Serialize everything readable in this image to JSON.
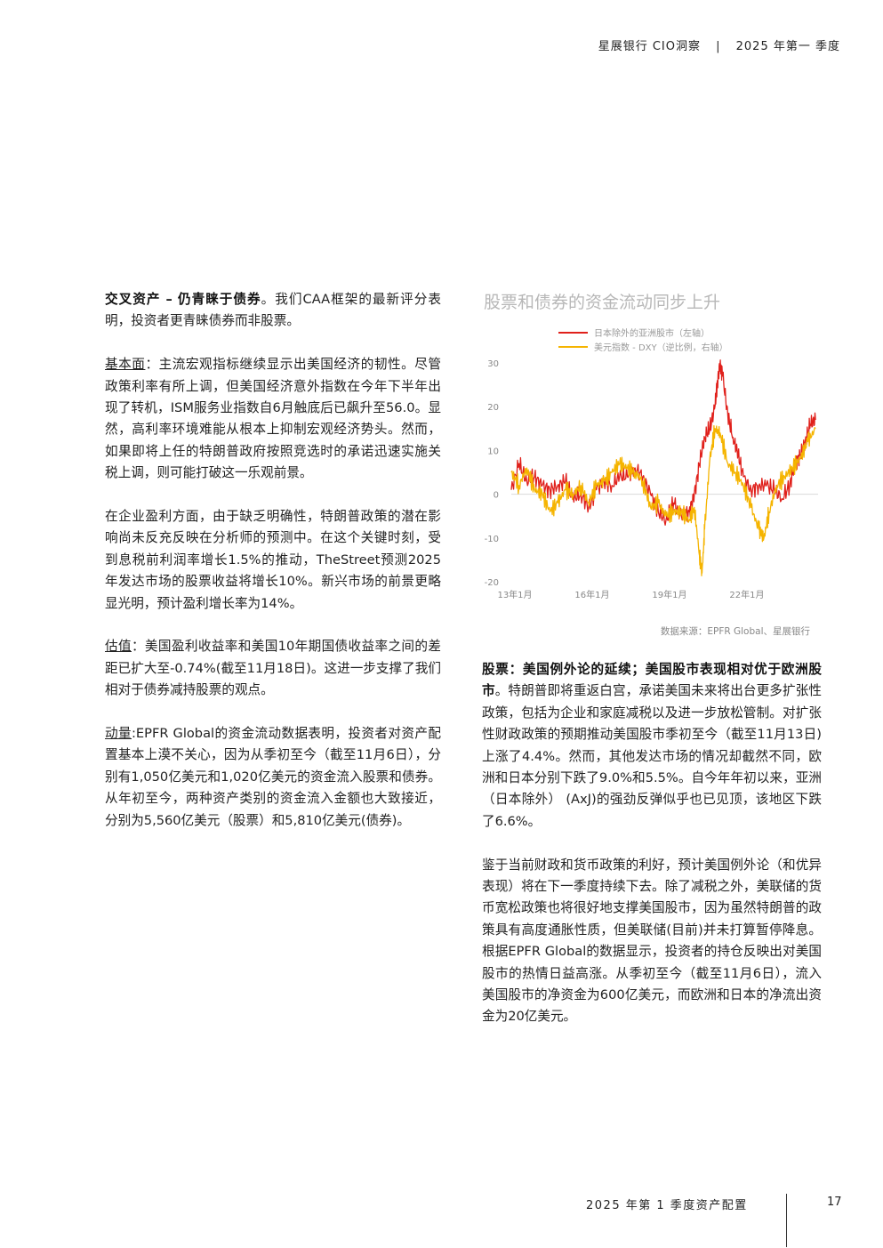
{
  "header": {
    "brand": "星展银行 CIO洞察",
    "separator": "|",
    "period": "2025 年第一 季度"
  },
  "left_column": [
    {
      "lead": "交叉资产 – 仍青睐于债券",
      "body": "。我们CAA框架的最新评分表明，投资者更青睐债券而非股票。"
    },
    {
      "lead": "基本面",
      "body": "：主流宏观指标继续显示出美国经济的韧性。尽管政策利率有所上调，但美国经济意外指数在今年下半年出现了转机，ISM服务业指数自6月触底后已飙升至56.0。显然，高利率环境难能从根本上抑制宏观经济势头。然而，如果即将上任的特朗普政府按照竞选时的承诺迅速实施关税上调，则可能打破这一乐观前景。"
    },
    {
      "lead": "",
      "body": "在企业盈利方面，由于缺乏明确性，特朗普政策的潜在影响尚未反充反映在分析师的预测中。在这个关键时刻，受到息税前利润率增长1.5%的推动，TheStreet预测2025年发达市场的股票收益将增长10%。新兴市场的前景更略显光明，预计盈利增长率为14%。"
    },
    {
      "lead": "估值",
      "body": "：美国盈利收益率和美国10年期国债收益率之间的差距已扩大至-0.74%(截至11月18日)。这进一步支撑了我们相对于债券减持股票的观点。"
    },
    {
      "lead": "动量",
      "body": ":EPFR Global的资金流动数据表明，投资者对资产配置基本上漠不关心，因为从季初至今（截至11月6日），分别有1,050亿美元和1,020亿美元的资金流入股票和债券。从年初至今，两种资产类别的资金流入金额也大致接近，分别为5,560亿美元（股票）和5,810亿美元(债券)。"
    }
  ],
  "right_column": [
    {
      "lead": "股票：美国例外论的延续；美国股市表现相对优于欧洲股市",
      "body": "。特朗普即将重返白宫，承诺美国未来将出台更多扩张性政策，包括为企业和家庭减税以及进一步放松管制。对扩张性财政政策的预期推动美国股市季初至今（截至11月13日)上涨了4.4%。然而，其他发达市场的情况却截然不同，欧洲和日本分别下跌了9.0%和5.5%。自今年年初以来，亚洲（日本除外） (AxJ)的强劲反弹似乎也已见顶，该地区下跌了6.6%。"
    },
    {
      "lead": "",
      "body": "鉴于当前财政和货币政策的利好，预计美国例外论（和优异表现）将在下一季度持续下去。除了减税之外，美联储的货币宽松政策也将很好地支撑美国股市，因为虽然特朗普的政策具有高度通胀性质，但美联储(目前)并未打算暂停降息。根据EPFR Global的数据显示，投资者的持仓反映出对美国股市的热情日益高涨。从季初至今（截至11月6日），流入美国股市的净资金为600亿美元，而欧洲和日本的净流出资金为20亿美元。"
    }
  ],
  "chart": {
    "title": "股票和债券的资金流动同步上升",
    "source": "数据来源：EPFR Global、星展银行"
  },
  "chart_data": {
    "type": "line",
    "title": "股票和债券的资金流动同步上升",
    "y_ticks": [
      "30",
      "20",
      "10",
      "0",
      "-10",
      "-20"
    ],
    "x_ticks": [
      "13年1月",
      "16年1月",
      "19年1月",
      "22年1月"
    ],
    "ylim": [
      -20,
      30
    ],
    "xlim": [
      2013.0,
      2024.9
    ],
    "legend_placement": "top-center",
    "grid": false,
    "series": [
      {
        "name": "日本除外的亚洲股市（左轴）",
        "color": "#e0201b",
        "x": [
          2013.0,
          2013.3,
          2013.6,
          2013.9,
          2014.2,
          2014.5,
          2014.8,
          2015.1,
          2015.4,
          2015.7,
          2016.0,
          2016.3,
          2016.6,
          2016.9,
          2017.2,
          2017.5,
          2017.8,
          2018.1,
          2018.4,
          2018.7,
          2019.0,
          2019.3,
          2019.6,
          2019.9,
          2020.1,
          2020.3,
          2020.5,
          2020.7,
          2020.9,
          2021.0,
          2021.1,
          2021.2,
          2021.4,
          2021.6,
          2021.8,
          2022.0,
          2022.3,
          2022.6,
          2022.9,
          2023.2,
          2023.5,
          2023.8,
          2024.0,
          2024.2,
          2024.4,
          2024.6,
          2024.8
        ],
        "y": [
          1,
          7,
          3,
          4,
          2,
          1,
          2,
          3,
          -1,
          0,
          -3,
          1,
          3,
          2,
          4,
          4,
          6,
          4,
          0,
          -4,
          -6,
          -2,
          -5,
          -4,
          0,
          7,
          13,
          15,
          20,
          26,
          30,
          27,
          18,
          13,
          9,
          4,
          1,
          2,
          2,
          1,
          -1,
          2,
          7,
          9,
          12,
          16,
          17
        ]
      },
      {
        "name": "美元指数 - DXY（逆比例，右轴）",
        "color": "#f5b400",
        "x": [
          2013.0,
          2013.3,
          2013.6,
          2013.9,
          2014.2,
          2014.5,
          2014.8,
          2015.1,
          2015.4,
          2015.7,
          2016.0,
          2016.3,
          2016.6,
          2016.9,
          2017.2,
          2017.5,
          2017.8,
          2018.1,
          2018.4,
          2018.7,
          2019.0,
          2019.3,
          2019.6,
          2019.9,
          2020.1,
          2020.3,
          2020.4,
          2020.5,
          2020.7,
          2020.9,
          2021.1,
          2021.4,
          2021.7,
          2022.0,
          2022.3,
          2022.6,
          2022.8,
          2023.0,
          2023.3,
          2023.6,
          2023.9,
          2024.2,
          2024.5,
          2024.8
        ],
        "y": [
          5,
          2,
          6,
          1,
          0,
          -4,
          -2,
          1,
          0,
          2,
          -2,
          2,
          3,
          5,
          7,
          6,
          5,
          3,
          -3,
          -2,
          -5,
          -4,
          -4,
          -6,
          -3,
          -14,
          -18,
          -8,
          8,
          15,
          14,
          7,
          5,
          2,
          -3,
          -8,
          -10,
          -4,
          2,
          4,
          6,
          8,
          12,
          15
        ]
      }
    ]
  },
  "footer": {
    "title": "2025 年第 1 季度资产配置",
    "page": "17"
  }
}
